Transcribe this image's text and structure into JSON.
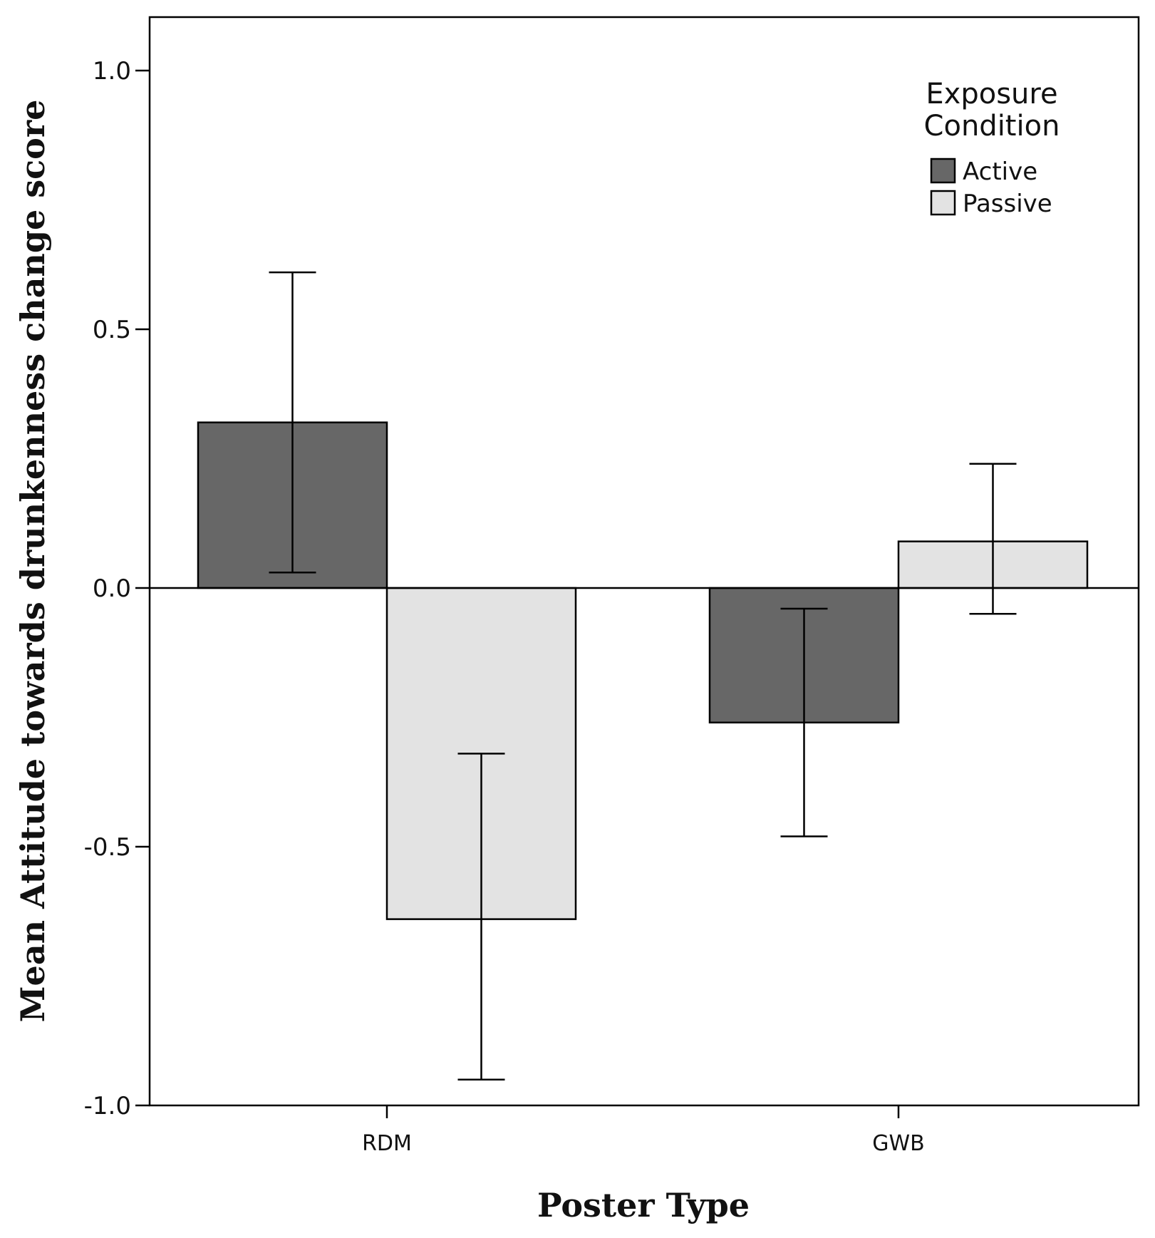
{
  "chart_data": {
    "type": "bar",
    "title": "",
    "xlabel": "Poster Type",
    "ylabel": "Mean Attitude towards drunkenness change score",
    "categories": [
      "RDM",
      "GWB"
    ],
    "series": [
      {
        "name": "Active",
        "color": "#676767",
        "values": [
          0.32,
          -0.26
        ],
        "error_low": [
          0.03,
          -0.48
        ],
        "error_high": [
          0.61,
          -0.04
        ]
      },
      {
        "name": "Passive",
        "color": "#e3e3e3",
        "values": [
          -0.64,
          0.09
        ],
        "error_low": [
          -0.95,
          -0.05
        ],
        "error_high": [
          -0.32,
          0.24
        ]
      }
    ],
    "ylim": [
      -1.0,
      1.1
    ],
    "yticks": [
      -1.0,
      -0.5,
      0.0,
      0.5,
      1.0
    ],
    "ytick_labels": [
      "-1.0",
      "-0.5",
      "0.0",
      "0.5",
      "1.0"
    ],
    "reference_line": 0.0,
    "grid": false,
    "legend": {
      "title_lines": [
        "Exposure",
        "Condition"
      ],
      "placement": "top-right"
    }
  }
}
